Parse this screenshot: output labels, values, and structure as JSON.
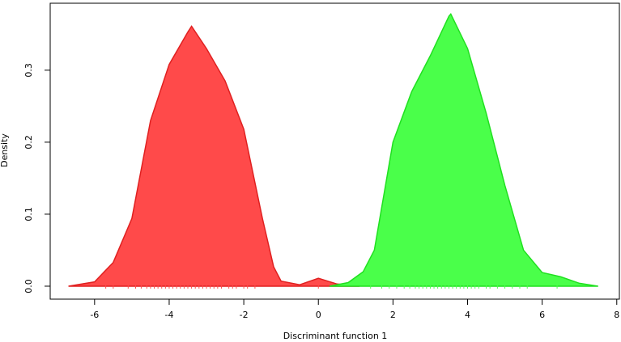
{
  "chart_data": {
    "type": "area",
    "xlabel": "Discriminant function 1",
    "ylabel": "Density",
    "xlim": [
      -7.19,
      8.07
    ],
    "ylim": [
      -0.018,
      0.393
    ],
    "xticks": [
      -6,
      -4,
      -2,
      0,
      2,
      4,
      6,
      8
    ],
    "yticks": [
      {
        "value": 0,
        "label": "0.0"
      },
      0.1,
      0.2,
      0.3
    ],
    "series": [
      {
        "color": "#ff4a4a",
        "stroke": "#e02020",
        "x": [
          -6.7,
          -6,
          -5.5,
          -5,
          -4.5,
          -4,
          -3.5,
          -3.4,
          -3,
          -2.5,
          -2,
          -1.5,
          -1.2,
          -1,
          -0.5,
          0,
          0.5,
          1.1
        ],
        "values": [
          0,
          0.006,
          0.033,
          0.094,
          0.23,
          0.308,
          0.353,
          0.361,
          0.33,
          0.285,
          0.218,
          0.094,
          0.027,
          0.007,
          0.002,
          0.011,
          0.003,
          0
        ],
        "rug": [
          -5.7,
          -5.5,
          -5.1,
          -4.9,
          -4.75,
          -4.6,
          -4.5,
          -4.4,
          -4.3,
          -4.2,
          -4.1,
          -4.0,
          -3.9,
          -3.8,
          -3.7,
          -3.6,
          -3.5,
          -3.4,
          -3.3,
          -3.2,
          -3.1,
          -3.0,
          -2.9,
          -2.8,
          -2.7,
          -2.6,
          -2.4,
          -2.3,
          -2.2,
          -2.0,
          -1.9,
          -1.7,
          0.0
        ]
      },
      {
        "color": "#4aff4a",
        "stroke": "#20e020",
        "x": [
          0.3,
          0.8,
          1.2,
          1.5,
          2,
          2.5,
          3,
          3.5,
          3.55,
          4,
          4.5,
          5,
          5.5,
          6,
          6.5,
          7,
          7.5
        ],
        "values": [
          0,
          0.005,
          0.02,
          0.05,
          0.2,
          0.27,
          0.32,
          0.375,
          0.378,
          0.33,
          0.24,
          0.14,
          0.05,
          0.019,
          0.013,
          0.004,
          0
        ],
        "rug": [
          1.4,
          1.7,
          1.9,
          2.1,
          2.3,
          2.45,
          2.6,
          2.7,
          2.8,
          2.9,
          3.0,
          3.1,
          3.2,
          3.3,
          3.4,
          3.5,
          3.6,
          3.7,
          3.8,
          3.9,
          4.0,
          4.1,
          4.2,
          4.3,
          4.5,
          4.6,
          4.8,
          5.0,
          5.2,
          5.4,
          5.6,
          6.4
        ]
      }
    ]
  }
}
